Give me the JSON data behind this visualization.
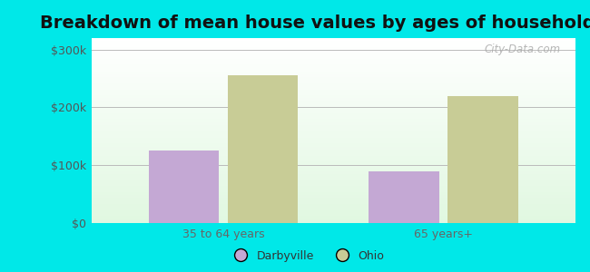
{
  "title": "Breakdown of mean house values by ages of householders",
  "categories": [
    "35 to 64 years",
    "65 years+"
  ],
  "darbyville_values": [
    125000,
    90000
  ],
  "ohio_values": [
    255000,
    220000
  ],
  "darbyville_color": "#c4a8d4",
  "ohio_color": "#c8cc96",
  "background_color": "#00e8e8",
  "ylabel_ticks": [
    0,
    100000,
    200000,
    300000
  ],
  "ylabel_labels": [
    "$0",
    "$100k",
    "$200k",
    "$300k"
  ],
  "ylim": [
    0,
    320000
  ],
  "legend_labels": [
    "Darbyville",
    "Ohio"
  ],
  "title_fontsize": 14,
  "bar_width": 0.32,
  "watermark": "City-Data.com"
}
